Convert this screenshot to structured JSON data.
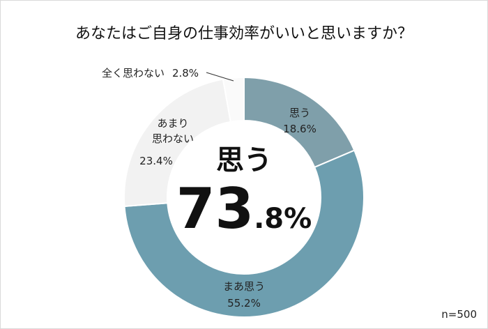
{
  "chart_data": {
    "type": "pie",
    "title": "あなたはご自身の仕事効率がいいと思いますか？",
    "slices": [
      {
        "label": "思う",
        "value": 18.6,
        "value_text": "18.6%",
        "color": "#7f9faa"
      },
      {
        "label": "まあ思う",
        "value": 55.2,
        "value_text": "55.2%",
        "color": "#6d9eaf"
      },
      {
        "label": "あまり思わない",
        "label_lines": [
          "あまり",
          "思わない"
        ],
        "value": 23.4,
        "value_text": "23.4%",
        "color": "#f2f2f2"
      },
      {
        "label": "全く思わない",
        "value": 2.8,
        "value_text": "2.8%",
        "color": "#fafafa"
      }
    ],
    "center": {
      "label": "思う",
      "value_main": "73",
      "value_decimal": ".8%"
    },
    "n_label": "n=500"
  }
}
